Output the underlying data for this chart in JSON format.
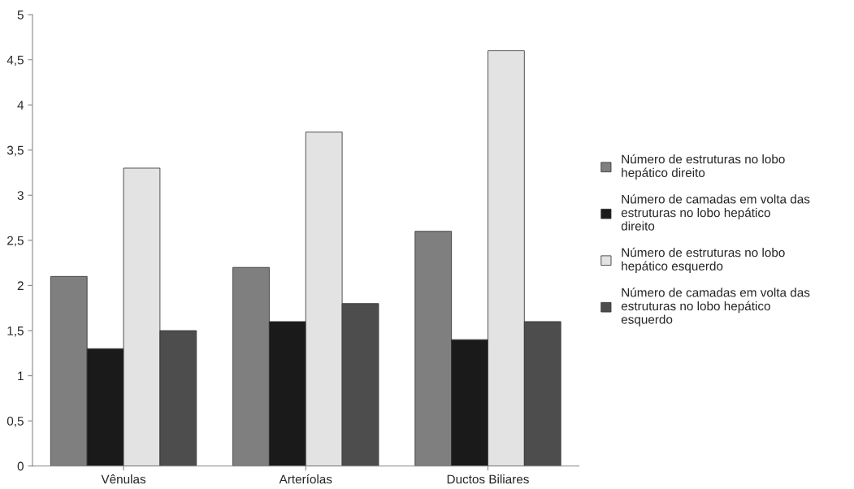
{
  "chart_data": {
    "type": "bar",
    "categories": [
      "Vênulas",
      "Arteríolas",
      "Ductos Biliares"
    ],
    "series": [
      {
        "name": "Número de estruturas no lobo hepático direito",
        "color": "#7f7f7f",
        "values": [
          2.1,
          2.2,
          2.6
        ]
      },
      {
        "name": "Número de camadas em volta das estruturas no lobo hepático direito",
        "color": "#1a1a1a",
        "values": [
          1.3,
          1.6,
          1.4
        ]
      },
      {
        "name": "Número de estruturas no lobo hepático esquerdo",
        "color": "#e3e3e3",
        "values": [
          3.3,
          3.7,
          4.6
        ]
      },
      {
        "name": "Número de camadas em volta das estruturas no lobo hepático esquerdo",
        "color": "#4d4d4d",
        "values": [
          1.5,
          1.8,
          1.6
        ]
      }
    ],
    "ylim": [
      0,
      5
    ],
    "yticks": [
      0,
      {
        "value": 0.5,
        "label": "0,5"
      },
      1,
      {
        "value": 1.5,
        "label": "1,5"
      },
      2,
      {
        "value": 2.5,
        "label": "2,5"
      },
      3,
      {
        "value": 3.5,
        "label": "3,5"
      },
      4,
      {
        "value": 4.5,
        "label": "4,5"
      },
      5
    ],
    "grid": false,
    "legend": "right"
  }
}
